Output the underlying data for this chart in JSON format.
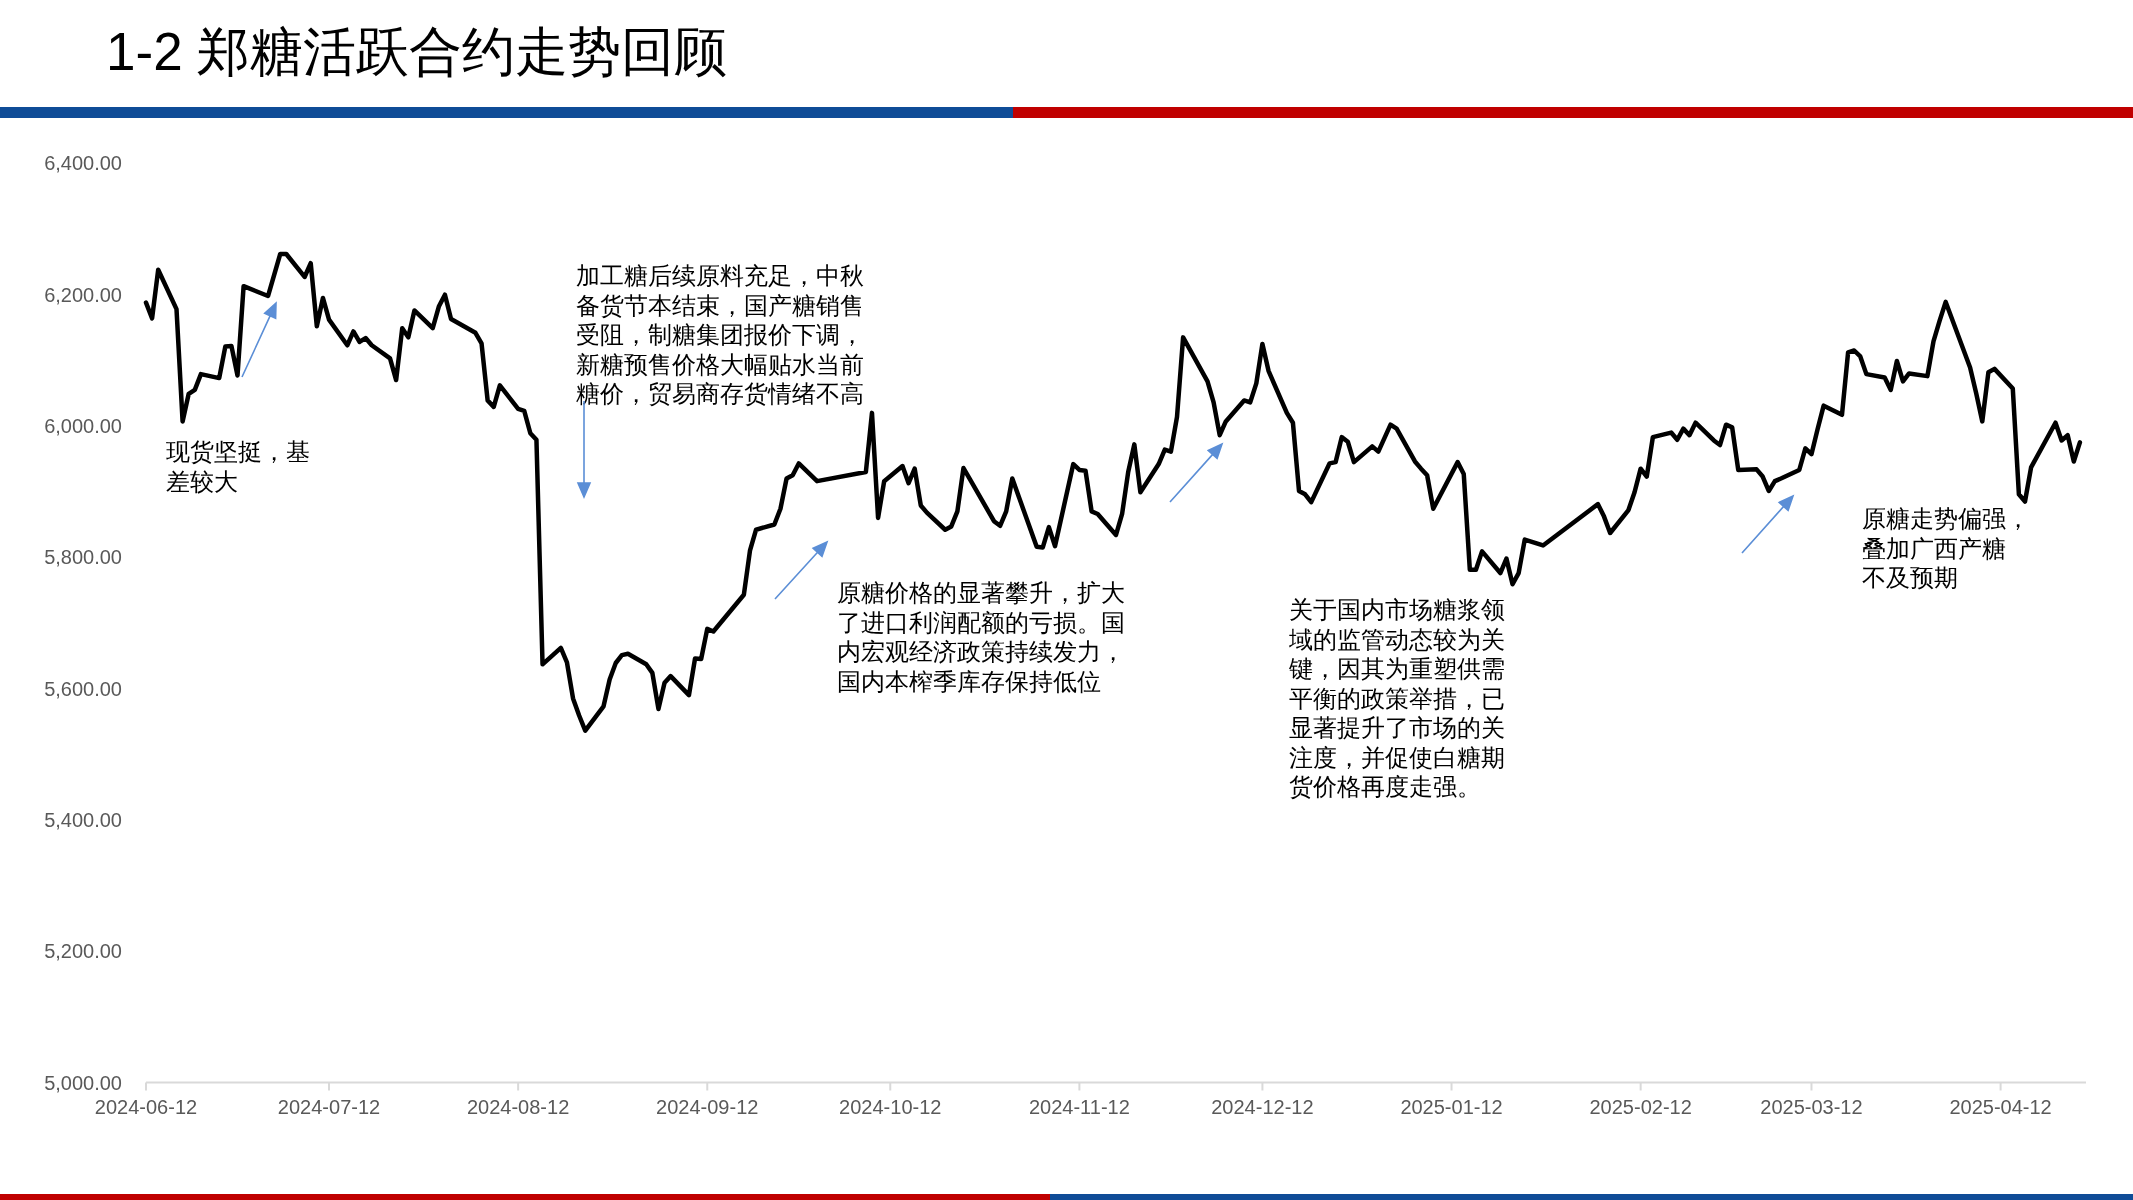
{
  "chart_data": {
    "type": "line",
    "title": "1-2 郑糖活跃合约走势回顾",
    "x": [
      "2024-06-12",
      "2024-06-13",
      "2024-06-14",
      "2024-06-17",
      "2024-06-18",
      "2024-06-19",
      "2024-06-20",
      "2024-06-21",
      "2024-06-24",
      "2024-06-25",
      "2024-06-26",
      "2024-06-27",
      "2024-06-28",
      "2024-07-02",
      "2024-07-04",
      "2024-07-05",
      "2024-07-08",
      "2024-07-09",
      "2024-07-10",
      "2024-07-11",
      "2024-07-12",
      "2024-07-15",
      "2024-07-16",
      "2024-07-17",
      "2024-07-18",
      "2024-07-19",
      "2024-07-22",
      "2024-07-23",
      "2024-07-24",
      "2024-07-25",
      "2024-07-26",
      "2024-07-29",
      "2024-07-30",
      "2024-07-31",
      "2024-08-01",
      "2024-08-05",
      "2024-08-06",
      "2024-08-07",
      "2024-08-08",
      "2024-08-09",
      "2024-08-12",
      "2024-08-13",
      "2024-08-14",
      "2024-08-15",
      "2024-08-16",
      "2024-08-19",
      "2024-08-20",
      "2024-08-21",
      "2024-08-22",
      "2024-08-23",
      "2024-08-26",
      "2024-08-27",
      "2024-08-28",
      "2024-08-29",
      "2024-08-30",
      "2024-09-02",
      "2024-09-03",
      "2024-09-04",
      "2024-09-05",
      "2024-09-06",
      "2024-09-09",
      "2024-09-10",
      "2024-09-11",
      "2024-09-12",
      "2024-09-13",
      "2024-09-18",
      "2024-09-19",
      "2024-09-20",
      "2024-09-23",
      "2024-09-24",
      "2024-09-25",
      "2024-09-26",
      "2024-09-27",
      "2024-09-30",
      "2024-10-08",
      "2024-10-09",
      "2024-10-10",
      "2024-10-11",
      "2024-10-14",
      "2024-10-15",
      "2024-10-16",
      "2024-10-17",
      "2024-10-18",
      "2024-10-21",
      "2024-10-22",
      "2024-10-23",
      "2024-10-24",
      "2024-10-25",
      "2024-10-29",
      "2024-10-30",
      "2024-10-31",
      "2024-11-01",
      "2024-11-05",
      "2024-11-06",
      "2024-11-07",
      "2024-11-08",
      "2024-11-11",
      "2024-11-12",
      "2024-11-13",
      "2024-11-14",
      "2024-11-15",
      "2024-11-18",
      "2024-11-19",
      "2024-11-20",
      "2024-11-21",
      "2024-11-22",
      "2024-11-25",
      "2024-11-26",
      "2024-11-27",
      "2024-11-28",
      "2024-11-29",
      "2024-12-03",
      "2024-12-04",
      "2024-12-05",
      "2024-12-06",
      "2024-12-09",
      "2024-12-10",
      "2024-12-11",
      "2024-12-12",
      "2024-12-13",
      "2024-12-16",
      "2024-12-17",
      "2024-12-18",
      "2024-12-19",
      "2024-12-20",
      "2024-12-23",
      "2024-12-24",
      "2024-12-25",
      "2024-12-26",
      "2024-12-27",
      "2024-12-30",
      "2024-12-31",
      "2025-01-02",
      "2025-01-03",
      "2025-01-06",
      "2025-01-07",
      "2025-01-08",
      "2025-01-09",
      "2025-01-13",
      "2025-01-14",
      "2025-01-15",
      "2025-01-16",
      "2025-01-17",
      "2025-01-20",
      "2025-01-21",
      "2025-01-22",
      "2025-01-23",
      "2025-01-24",
      "2025-01-27",
      "2025-02-05",
      "2025-02-06",
      "2025-02-07",
      "2025-02-10",
      "2025-02-11",
      "2025-02-12",
      "2025-02-13",
      "2025-02-14",
      "2025-02-17",
      "2025-02-18",
      "2025-02-19",
      "2025-02-20",
      "2025-02-21",
      "2025-02-24",
      "2025-02-25",
      "2025-02-26",
      "2025-02-27",
      "2025-02-28",
      "2025-03-03",
      "2025-03-04",
      "2025-03-05",
      "2025-03-06",
      "2025-03-07",
      "2025-03-10",
      "2025-03-11",
      "2025-03-12",
      "2025-03-13",
      "2025-03-14",
      "2025-03-17",
      "2025-03-18",
      "2025-03-19",
      "2025-03-20",
      "2025-03-21",
      "2025-03-24",
      "2025-03-25",
      "2025-03-26",
      "2025-03-27",
      "2025-03-28",
      "2025-03-31",
      "2025-04-01",
      "2025-04-02",
      "2025-04-03",
      "2025-04-07",
      "2025-04-08",
      "2025-04-09",
      "2025-04-10",
      "2025-04-11",
      "2025-04-14",
      "2025-04-15",
      "2025-04-16",
      "2025-04-17",
      "2025-04-21",
      "2025-04-22",
      "2025-04-23",
      "2025-04-24",
      "2025-04-25"
    ],
    "values": [
      6188,
      6164,
      6238,
      6178,
      6007,
      6049,
      6055,
      6079,
      6073,
      6121,
      6122,
      6077,
      6213,
      6198,
      6262,
      6262,
      6227,
      6248,
      6152,
      6195,
      6162,
      6123,
      6144,
      6128,
      6134,
      6123,
      6103,
      6070,
      6149,
      6135,
      6176,
      6149,
      6182,
      6200,
      6163,
      6142,
      6126,
      6039,
      6029,
      6062,
      6026,
      6023,
      5989,
      5979,
      5637,
      5662,
      5640,
      5585,
      5559,
      5536,
      5573,
      5614,
      5639,
      5651,
      5653,
      5637,
      5624,
      5569,
      5609,
      5619,
      5590,
      5646,
      5645,
      5691,
      5687,
      5743,
      5810,
      5842,
      5850,
      5874,
      5920,
      5925,
      5943,
      5916,
      5930,
      6020,
      5860,
      5916,
      5939,
      5913,
      5935,
      5879,
      5868,
      5842,
      5847,
      5870,
      5936,
      5920,
      5855,
      5848,
      5870,
      5920,
      5816,
      5815,
      5846,
      5817,
      5942,
      5933,
      5932,
      5870,
      5866,
      5834,
      5866,
      5930,
      5972,
      5899,
      5942,
      5964,
      5961,
      6014,
      6135,
      6068,
      6036,
      5986,
      6007,
      6039,
      6036,
      6065,
      6125,
      6084,
      6020,
      6005,
      5901,
      5896,
      5884,
      5943,
      5945,
      5983,
      5976,
      5945,
      5969,
      5961,
      6002,
      5996,
      5946,
      5935,
      5925,
      5874,
      5945,
      5927,
      5781,
      5781,
      5809,
      5776,
      5798,
      5759,
      5776,
      5827,
      5818,
      5881,
      5862,
      5837,
      5872,
      5899,
      5935,
      5923,
      5983,
      5990,
      5979,
      5996,
      5986,
      6005,
      5978,
      5971,
      6002,
      5998,
      5933,
      5934,
      5923,
      5901,
      5916,
      5920,
      5933,
      5966,
      5957,
      5995,
      6031,
      6017,
      6112,
      6115,
      6106,
      6079,
      6074,
      6055,
      6099,
      6068,
      6080,
      6076,
      6129,
      6160,
      6189,
      6089,
      6050,
      6007,
      6082,
      6087,
      6057,
      5896,
      5885,
      5937,
      6005,
      5978,
      5986,
      5946,
      5975
    ],
    "color": "#000000",
    "xlim": [
      "2024-06-12",
      "2025-04-26"
    ],
    "xticks": [
      "2024-06-12",
      "2024-07-12",
      "2024-08-12",
      "2024-09-12",
      "2024-10-12",
      "2024-11-12",
      "2024-12-12",
      "2025-01-12",
      "2025-02-12",
      "2025-03-12",
      "2025-04-12"
    ],
    "ylim": [
      5000,
      6400
    ],
    "yticks": [
      {
        "value": 5000,
        "label": "5,000.00"
      },
      {
        "value": 5200,
        "label": "5,200.00"
      },
      {
        "value": 5400,
        "label": "5,400.00"
      },
      {
        "value": 5600,
        "label": "5,600.00"
      },
      {
        "value": 5800,
        "label": "5,800.00"
      },
      {
        "value": 6000,
        "label": "6,000.00"
      },
      {
        "value": 6200,
        "label": "6,200.00"
      },
      {
        "value": 6400,
        "label": "6,400.00"
      }
    ],
    "annotations": [
      "现货坚挺，基差较大",
      "加工糖后续原料充足，中秋备货节本结束，国产糖销售受阻，制糖集团报价下调，新糖预售价格大幅贴水当前糖价，贸易商存货情绪不高",
      "原糖价格的显著攀升，扩大了进口利润配额的亏损。国内宏观经济政策持续发力，国内本榨季库存保持低位",
      "关于国内市场糖浆领域的监管动态较为关键，因其为重塑供需平衡的政策举措，已显著提升了市场的关注度，并促使白糖期货价格再度走强。",
      "原糖走势偏强，叠加广西产糖不及预期"
    ]
  }
}
